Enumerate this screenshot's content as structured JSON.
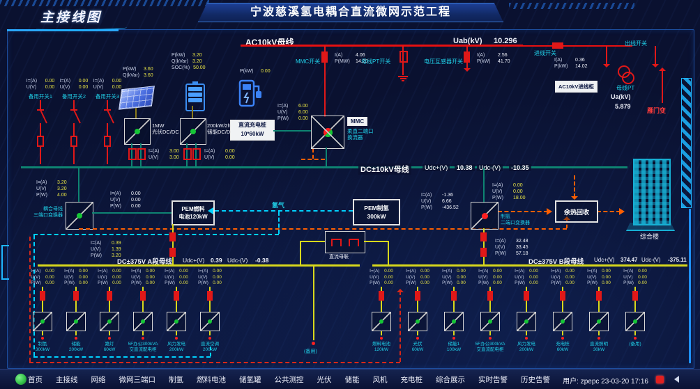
{
  "title": "宁波慈溪氢电耦合直流微网示范工程",
  "page_title": "主接线图",
  "ac": {
    "bus_label": "AC10kV母线",
    "uab_label": "Uab(kV)",
    "uab_value": "10.296",
    "mmc_switch": "MMC开关",
    "pt_switch": "母线PT开关",
    "vt_switch": "电压互感器开关",
    "incoming_switch": "进线开关",
    "outgoing_switch": "出线开关",
    "incoming_cabinet": "AC10kV进线柜",
    "bus_pt": "母线PT",
    "ua_label": "Ua(kV)",
    "ua_value": "5.879",
    "substation": "雁门变"
  },
  "vals": {
    "pv": [
      [
        "P(kW)",
        "3.60"
      ],
      [
        "Q(kVar)",
        "3.60"
      ]
    ],
    "bat": [
      [
        "P(kW)",
        "3.20"
      ],
      [
        "Q(kVar)",
        "3.20"
      ],
      [
        "SOC(%)",
        "50.00"
      ]
    ],
    "ev": [
      [
        "P(kW)",
        "0.00"
      ]
    ],
    "mmc_sw": [
      [
        "I(A)",
        "4.06"
      ],
      [
        "P(MW)",
        "14.20"
      ]
    ],
    "vt_sw": [
      [
        "I(A)",
        "2.56"
      ],
      [
        "P(kW)",
        "41.70"
      ]
    ],
    "in_sw": [
      [
        "I(A)",
        "0.36"
      ],
      [
        "P(kW)",
        "14.02"
      ]
    ],
    "pv_iu": [
      [
        "I=(A)",
        "3.00"
      ],
      [
        "U(V)",
        "3.00"
      ]
    ],
    "bat_iu": [
      [
        "I=(A)",
        "0.00"
      ],
      [
        "U(V)",
        "0.00"
      ]
    ],
    "ev_iup": [
      [
        "I=(A)",
        "6.00"
      ],
      [
        "U(V)",
        "6.00"
      ],
      [
        "P(W)",
        "0.00"
      ]
    ],
    "threeport": [
      [
        "I=(A)",
        "3.20"
      ],
      [
        "U(V)",
        "3.20"
      ],
      [
        "P(W)",
        "4.00"
      ]
    ],
    "mid_iu": [
      [
        "I=(A)",
        "0.00"
      ],
      [
        "U(V)",
        "0.00"
      ],
      [
        "P(W)",
        "0.00"
      ]
    ],
    "fc_drop": [
      [
        "I=(A)",
        "0.39"
      ],
      [
        "U(V)",
        "1.39"
      ],
      [
        "P(W)",
        "3.20"
      ]
    ],
    "el_left": [
      [
        "I=(A)",
        "-1.36"
      ],
      [
        "U(V)",
        "6.66"
      ],
      [
        "P(W)",
        "-436.52"
      ]
    ],
    "el_right": [
      [
        "I=(A)",
        "0.00"
      ],
      [
        "U(V)",
        "0.00"
      ],
      [
        "P(W)",
        "18.00"
      ]
    ],
    "el_drop": [
      [
        "I=(A)",
        "32.48"
      ],
      [
        "U(V)",
        "33.45"
      ],
      [
        "P(W)",
        "57.18"
      ]
    ]
  },
  "left": {
    "i_label": "I=(A)",
    "u_label": "U(V)",
    "spares": [
      {
        "name": "备用开关1",
        "i": "0.00",
        "u": "0.00"
      },
      {
        "name": "备用开关2",
        "i": "0.00",
        "u": "0.00"
      },
      {
        "name": "备用开关3",
        "i": "0.00",
        "u": "0.00"
      }
    ]
  },
  "pv": {
    "conv_line1": "1MW",
    "conv_line2": "光伏DC/DC"
  },
  "bat": {
    "conv_line1": "200kW/2h",
    "conv_line2": "储能DC/DC"
  },
  "ev": {
    "box_line1": "直流充电桩",
    "box_line2": "10*60kW"
  },
  "mmc": {
    "chip": "MMC",
    "label1": "柔直二端口",
    "label2": "换流器"
  },
  "dc10": {
    "bus_label": "DC±10kV母线",
    "udcp_label": "Udc+(V)",
    "udcp_value": "10.38",
    "udcn_label": "Udc-(V)",
    "udcn_value": "-10.35"
  },
  "mid": {
    "tp_label1": "耦合母线",
    "tp_label2": "三端口变换器",
    "fc_line1": "PEM燃料",
    "fc_line2": "电池120kW",
    "h2_label": "氢气",
    "el_line1": "PEM制氢",
    "el_line2": "300kW",
    "el_conv1": "制氢",
    "el_conv2": "二端口变换器",
    "heat_box": "余热回收",
    "building": "综合楼",
    "bustie": "直流母联"
  },
  "dc375a": {
    "bus_label": "DC±375V A段母线",
    "udcp_label": "Udc+(V)",
    "udcp_value": "0.39",
    "udcn_label": "Udc-(V)",
    "udcn_value": "-0.38"
  },
  "dc375b": {
    "bus_label": "DC±375V B段母线",
    "udcp_label": "Udc+(V)",
    "udcp_value": "374.47",
    "udcn_label": "Udc-(V)",
    "udcn_value": "-375.11"
  },
  "feeders": {
    "value_labels": [
      "I=(A)",
      "U(V)",
      "P(W)"
    ],
    "spare_label": "(备用)",
    "bank_a": [
      {
        "line1": "制氢",
        "line2": "300kW",
        "vals": [
          "0.00",
          "0.00",
          "0.00"
        ]
      },
      {
        "line1": "储能",
        "line2": "200kW",
        "vals": [
          "0.00",
          "0.00",
          "0.00"
        ]
      },
      {
        "line1": "路灯",
        "line2": "60kW",
        "vals": [
          "0.00",
          "0.00",
          "0.00"
        ]
      },
      {
        "line1": "5F办公300kVA",
        "line2": "交直流配电柜",
        "vals": [
          "0.00",
          "0.00",
          "0.00"
        ]
      },
      {
        "line1": "风力发电",
        "line2": "200kW",
        "vals": [
          "0.00",
          "0.00",
          "0.00"
        ]
      },
      {
        "line1": "直流空调",
        "line2": "200kW",
        "vals": [
          "0.00",
          "0.00",
          "0.00"
        ]
      }
    ],
    "bank_b": [
      {
        "line1": "燃料电池",
        "line2": "120kW",
        "vals": [
          "0.00",
          "0.00",
          "0.00"
        ]
      },
      {
        "line1": "光伏",
        "line2": "60kW",
        "vals": [
          "0.00",
          "0.00",
          "0.00"
        ]
      },
      {
        "line1": "储能1",
        "line2": "100kW",
        "vals": [
          "0.00",
          "0.00",
          "0.00"
        ]
      },
      {
        "line1": "5F办公300kVA",
        "line2": "交直流配电柜",
        "vals": [
          "0.00",
          "0.00",
          "0.00"
        ]
      },
      {
        "line1": "风力发电",
        "line2": "200kW",
        "vals": [
          "0.00",
          "0.00",
          "0.00"
        ]
      },
      {
        "line1": "充电桩",
        "line2": "60kW",
        "vals": [
          "0.00",
          "0.00",
          "0.00"
        ]
      },
      {
        "line1": "直流照明",
        "line2": "30kW",
        "vals": [
          "0.00",
          "0.00",
          "0.00"
        ]
      },
      {
        "line1": "(备用)",
        "line2": "",
        "vals": [
          "0.00",
          "0.00",
          "0.00"
        ]
      }
    ]
  },
  "menu": {
    "items": [
      "首页",
      "主接线",
      "网络",
      "微网三端口",
      "制氢",
      "燃料电池",
      "储氢罐",
      "公共测控",
      "光伏",
      "储能",
      "风机",
      "充电桩",
      "综合展示",
      "实时告警",
      "历史告警"
    ],
    "user_info": "用户: zpepc 23-03-20 17:16"
  },
  "colors": {
    "ac_bus": "#e81010",
    "dc10_bus": "#0e8472",
    "dc375_bus": "#d8d81c",
    "label_cyan": "#20d0e8",
    "value_yellow": "#e8e445",
    "hydrogen": "#00d2ff",
    "heat": "#ff5f00",
    "alarm_red": "#e02020",
    "logo_green": "#35c24a"
  }
}
